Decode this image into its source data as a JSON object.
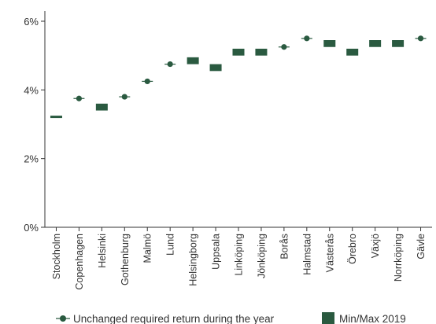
{
  "chart_data": {
    "type": "range-and-marker",
    "title": "",
    "xlabel": "",
    "ylabel": "",
    "ylim": [
      0,
      6
    ],
    "yticks": [
      0,
      2,
      4,
      6
    ],
    "ytick_labels": [
      "0%",
      "2%",
      "4%",
      "6%"
    ],
    "grid": false,
    "legend_position": "bottom",
    "categories": [
      "Stockholm",
      "Copenhagen",
      "Helsinki",
      "Gothenburg",
      "Malmö",
      "Lund",
      "Helsingborg",
      "Uppsala",
      "Linköping",
      "Jönköping",
      "Borås",
      "Halmstad",
      "Västerås",
      "Örebro",
      "Växjö",
      "Norrköping",
      "Gävle"
    ],
    "series": [
      {
        "name": "Min/Max 2019",
        "kind": "range",
        "low": [
          3.2,
          3.75,
          3.4,
          3.8,
          4.25,
          4.75,
          4.75,
          4.55,
          5.0,
          5.0,
          5.25,
          5.5,
          5.25,
          5.0,
          5.25,
          5.25,
          5.5
        ],
        "high": [
          3.25,
          3.75,
          3.6,
          3.8,
          4.25,
          4.75,
          4.95,
          4.75,
          5.2,
          5.2,
          5.25,
          5.5,
          5.45,
          5.2,
          5.45,
          5.45,
          5.5
        ]
      },
      {
        "name": "Unchanged required return during the year",
        "kind": "marker",
        "values": [
          null,
          3.75,
          null,
          3.8,
          4.25,
          4.75,
          null,
          null,
          null,
          null,
          5.25,
          5.5,
          null,
          null,
          null,
          null,
          5.5
        ]
      }
    ]
  },
  "colors": {
    "range": "#2a5a40",
    "marker": "#2a5a40",
    "axis": "#333333"
  }
}
